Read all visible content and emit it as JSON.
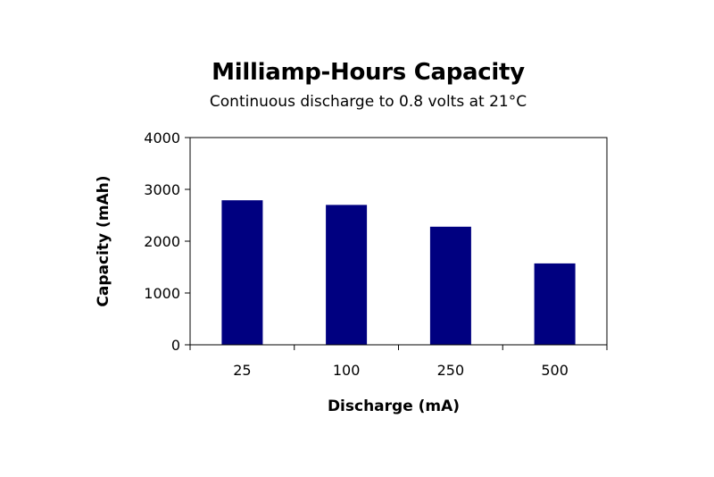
{
  "chart_data": {
    "type": "bar",
    "title": "Milliamp-Hours Capacity",
    "subtitle": "Continuous discharge to 0.8 volts at 21°C",
    "xlabel": "Discharge (mA)",
    "ylabel": "Capacity (mAh)",
    "categories": [
      "25",
      "100",
      "250",
      "500"
    ],
    "values": [
      2790,
      2700,
      2280,
      1570
    ],
    "ylim": [
      0,
      4000
    ],
    "yticks": [
      0,
      1000,
      2000,
      3000,
      4000
    ],
    "ytick_labels": [
      "0",
      "1000",
      "2000",
      "3000",
      "4000"
    ],
    "grid": false,
    "legend": "none",
    "bar_color": "#000080",
    "axis_color": "#000000"
  }
}
